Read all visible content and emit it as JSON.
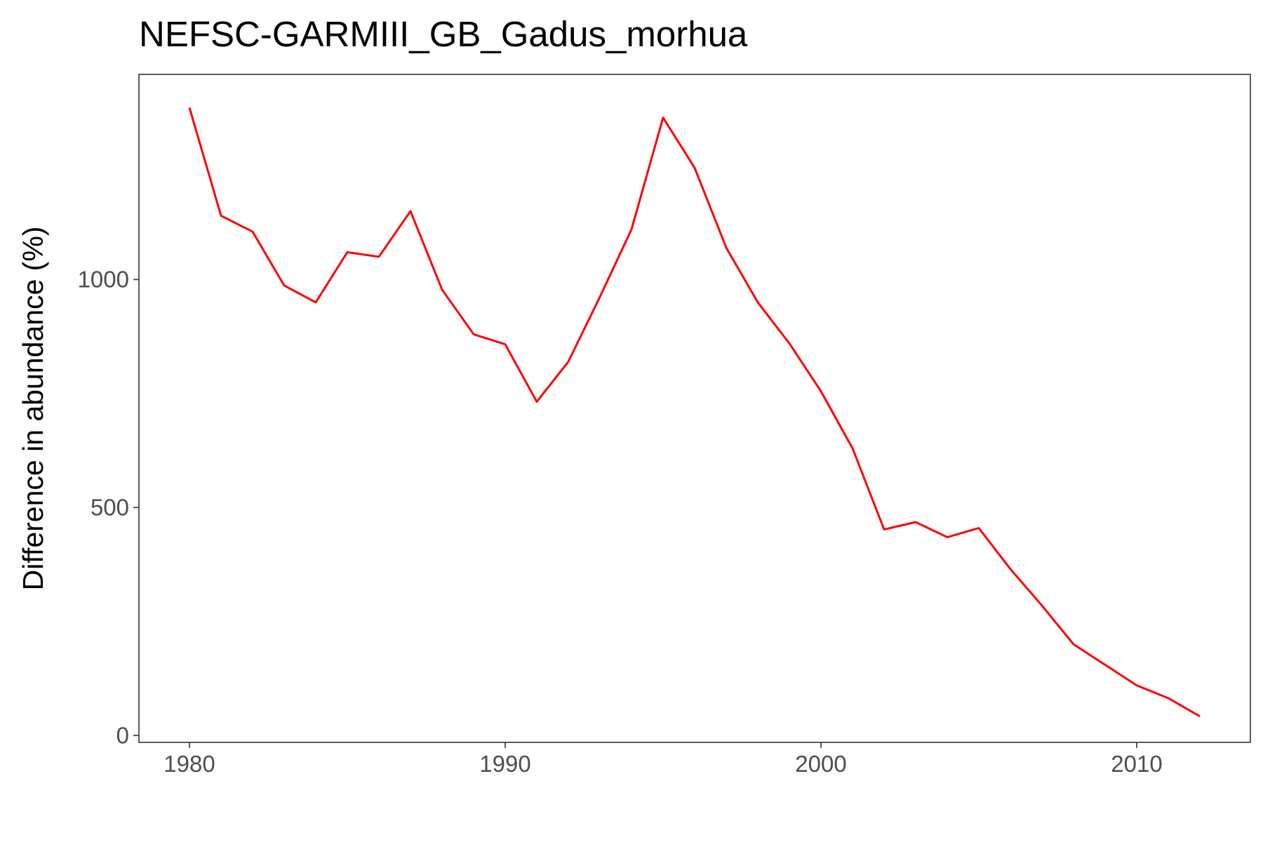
{
  "chart_data": {
    "type": "line",
    "title": "NEFSC-GARMIII_GB_Gadus_morhua",
    "xlabel": "",
    "ylabel": "Difference in abundance (%)",
    "xlim": [
      1978.4,
      2013.6
    ],
    "ylim": [
      -15,
      1450
    ],
    "x_ticks": [
      1980,
      1990,
      2000,
      2010
    ],
    "x_tick_labels": [
      "1980",
      "1990",
      "2000",
      "2010"
    ],
    "y_ticks": [
      0,
      500,
      1000
    ],
    "y_tick_labels": [
      "0",
      "500",
      "1000"
    ],
    "grid": false,
    "legend": "none",
    "series": [
      {
        "color": "#ff0000",
        "x": [
          1980,
          1981,
          1982,
          1983,
          1984,
          1985,
          1986,
          1987,
          1988,
          1989,
          1990,
          1991,
          1992,
          1993,
          1994,
          1995,
          1996,
          1997,
          1998,
          1999,
          2000,
          2001,
          2002,
          2003,
          2004,
          2005,
          2006,
          2007,
          2008,
          2009,
          2010,
          2011,
          2012
        ],
        "y": [
          1377,
          1140,
          1105,
          987,
          950,
          1060,
          1050,
          1150,
          978,
          880,
          858,
          732,
          820,
          962,
          1110,
          1355,
          1245,
          1070,
          950,
          860,
          755,
          630,
          452,
          468,
          435,
          455,
          365,
          285,
          200,
          155,
          110,
          82,
          42
        ]
      }
    ]
  }
}
